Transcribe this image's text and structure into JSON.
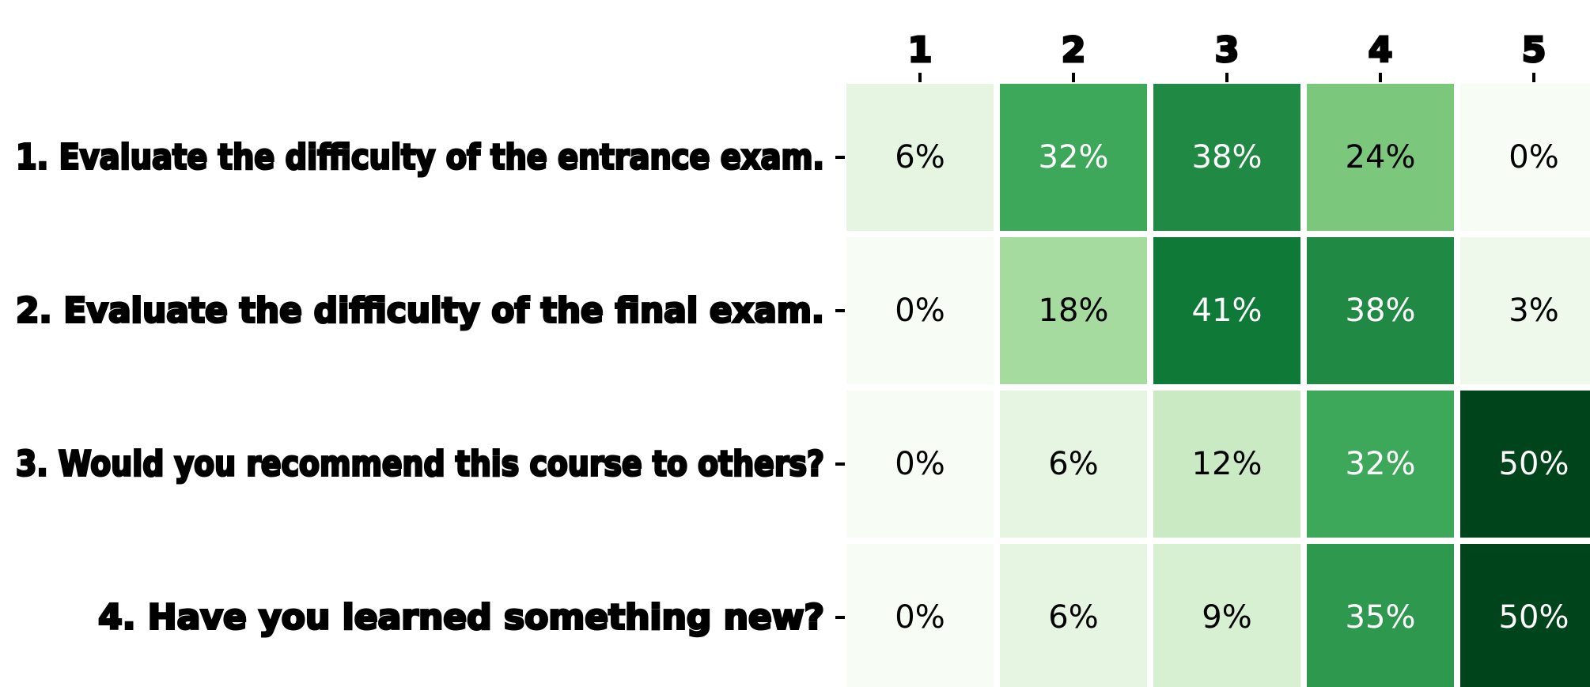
{
  "chart_data": {
    "type": "heatmap",
    "title": "",
    "xlabel": "",
    "ylabel": "",
    "x_tick_position": "top",
    "columns": [
      "1",
      "2",
      "3",
      "4",
      "5"
    ],
    "rows": [
      "1. Evaluate the difficulty of the entrance exam.",
      "2. Evaluate the difficulty of the final exam.",
      "3. Would you recommend this course to others?",
      "4. Have you learned something new?"
    ],
    "values": [
      [
        6,
        32,
        38,
        24,
        0
      ],
      [
        0,
        18,
        41,
        38,
        3
      ],
      [
        0,
        6,
        12,
        32,
        50
      ],
      [
        0,
        6,
        9,
        35,
        50
      ]
    ],
    "value_labels": [
      [
        "6%",
        "32%",
        "38%",
        "24%",
        "0%"
      ],
      [
        "0%",
        "18%",
        "41%",
        "38%",
        "3%"
      ],
      [
        "0%",
        "6%",
        "12%",
        "32%",
        "50%"
      ],
      [
        "0%",
        "6%",
        "9%",
        "35%",
        "50%"
      ]
    ],
    "colormap": "Greens",
    "value_range": [
      0,
      50
    ],
    "colors": {
      "low": "#f7fcf5",
      "high": "#00441b",
      "text_dark": "#000000",
      "text_light": "#ffffff",
      "cell_gap": "#ffffff"
    },
    "grid": false,
    "legend": "none"
  }
}
